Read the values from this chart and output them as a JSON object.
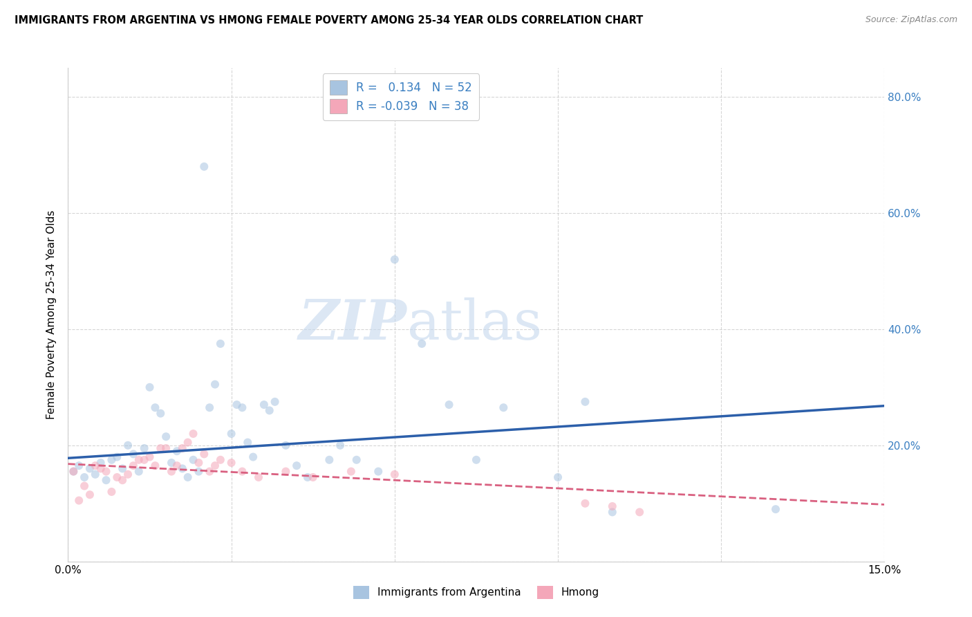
{
  "title": "IMMIGRANTS FROM ARGENTINA VS HMONG FEMALE POVERTY AMONG 25-34 YEAR OLDS CORRELATION CHART",
  "source": "Source: ZipAtlas.com",
  "ylabel": "Female Poverty Among 25-34 Year Olds",
  "xlim": [
    0.0,
    0.15
  ],
  "ylim": [
    0.0,
    0.85
  ],
  "argentina_color": "#a8c4e0",
  "hmong_color": "#f4a7b9",
  "argentina_line_color": "#2c5faa",
  "hmong_line_color": "#d96080",
  "argentina_R": 0.134,
  "argentina_N": 52,
  "hmong_R": -0.039,
  "hmong_N": 38,
  "watermark_zip": "ZIP",
  "watermark_atlas": "atlas",
  "grid_color": "#cccccc",
  "background_color": "#ffffff",
  "marker_size": 75,
  "marker_alpha": 0.55,
  "argentina_scatter_x": [
    0.001,
    0.002,
    0.003,
    0.004,
    0.005,
    0.006,
    0.007,
    0.008,
    0.009,
    0.01,
    0.011,
    0.012,
    0.013,
    0.014,
    0.015,
    0.016,
    0.017,
    0.018,
    0.019,
    0.02,
    0.021,
    0.022,
    0.023,
    0.024,
    0.025,
    0.026,
    0.027,
    0.028,
    0.03,
    0.031,
    0.032,
    0.033,
    0.034,
    0.036,
    0.037,
    0.038,
    0.04,
    0.042,
    0.044,
    0.048,
    0.05,
    0.053,
    0.057,
    0.06,
    0.065,
    0.07,
    0.075,
    0.08,
    0.09,
    0.095,
    0.1,
    0.13
  ],
  "argentina_scatter_y": [
    0.155,
    0.165,
    0.145,
    0.16,
    0.15,
    0.17,
    0.14,
    0.175,
    0.18,
    0.16,
    0.2,
    0.185,
    0.155,
    0.195,
    0.3,
    0.265,
    0.255,
    0.215,
    0.17,
    0.19,
    0.16,
    0.145,
    0.175,
    0.155,
    0.68,
    0.265,
    0.305,
    0.375,
    0.22,
    0.27,
    0.265,
    0.205,
    0.18,
    0.27,
    0.26,
    0.275,
    0.2,
    0.165,
    0.145,
    0.175,
    0.2,
    0.175,
    0.155,
    0.52,
    0.375,
    0.27,
    0.175,
    0.265,
    0.145,
    0.275,
    0.085,
    0.09
  ],
  "hmong_scatter_x": [
    0.001,
    0.002,
    0.003,
    0.004,
    0.005,
    0.006,
    0.007,
    0.008,
    0.009,
    0.01,
    0.011,
    0.012,
    0.013,
    0.014,
    0.015,
    0.016,
    0.017,
    0.018,
    0.019,
    0.02,
    0.021,
    0.022,
    0.023,
    0.024,
    0.025,
    0.026,
    0.027,
    0.028,
    0.03,
    0.032,
    0.035,
    0.04,
    0.045,
    0.052,
    0.06,
    0.095,
    0.1,
    0.105
  ],
  "hmong_scatter_y": [
    0.155,
    0.105,
    0.13,
    0.115,
    0.165,
    0.16,
    0.155,
    0.12,
    0.145,
    0.14,
    0.15,
    0.165,
    0.175,
    0.175,
    0.18,
    0.165,
    0.195,
    0.195,
    0.155,
    0.165,
    0.195,
    0.205,
    0.22,
    0.17,
    0.185,
    0.155,
    0.165,
    0.175,
    0.17,
    0.155,
    0.145,
    0.155,
    0.145,
    0.155,
    0.15,
    0.1,
    0.095,
    0.085
  ],
  "argentina_line_x": [
    0.0,
    0.15
  ],
  "argentina_line_y": [
    0.178,
    0.268
  ],
  "hmong_line_x": [
    0.0,
    0.15
  ],
  "hmong_line_y": [
    0.168,
    0.098
  ]
}
